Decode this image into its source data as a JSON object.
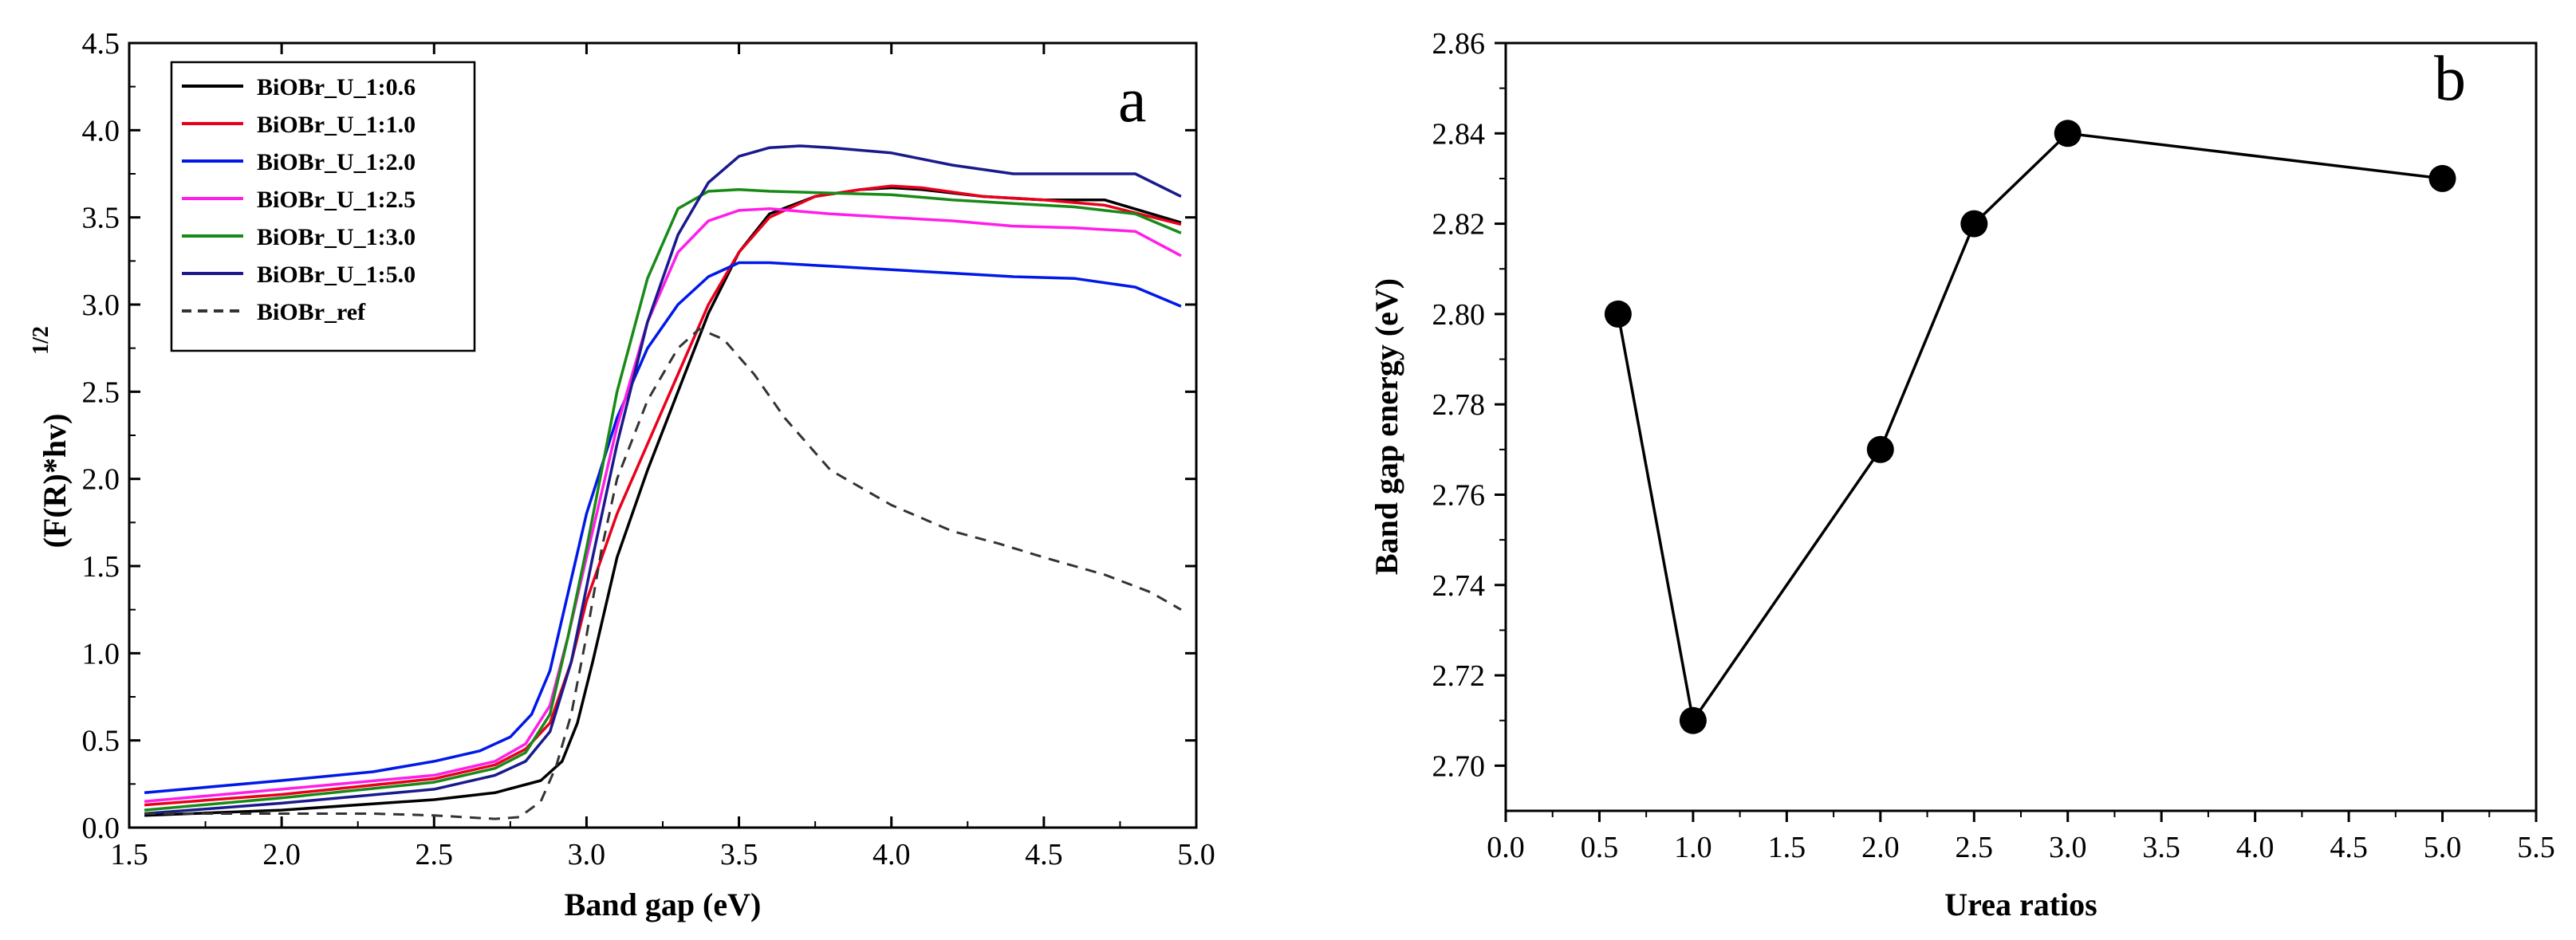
{
  "chart_data": [
    {
      "type": "line",
      "panel_label": "a",
      "title": "",
      "xlabel": "Band gap (eV)",
      "ylabel": "(F(R)*hv)",
      "ylabel_superscript": "1/2",
      "xlim": [
        1.5,
        5.0
      ],
      "ylim": [
        0,
        4.5
      ],
      "xticks": [
        1.5,
        2.0,
        2.5,
        3.0,
        3.5,
        4.0,
        4.5,
        5.0
      ],
      "xtick_labels": [
        "1.5",
        "2.0",
        "2.5",
        "3.0",
        "3.5",
        "4.0",
        "4.5",
        "5.0"
      ],
      "yticks": [
        0,
        0.5,
        1.0,
        1.5,
        2.0,
        2.5,
        3.0,
        3.5,
        4.0,
        4.5
      ],
      "ytick_labels": [
        "0.0",
        "0.5",
        "1.0",
        "1.5",
        "2.0",
        "2.5",
        "3.0",
        "3.5",
        "4.0",
        "4.5"
      ],
      "legend_position": "top-left",
      "series": [
        {
          "name": "BiOBr_U_1:0.6",
          "color": "#000000",
          "dash": false,
          "x": [
            1.55,
            2.0,
            2.5,
            2.7,
            2.85,
            2.92,
            2.97,
            3.02,
            3.1,
            3.2,
            3.3,
            3.4,
            3.5,
            3.6,
            3.75,
            3.9,
            4.0,
            4.1,
            4.3,
            4.5,
            4.7,
            4.95
          ],
          "y": [
            0.07,
            0.1,
            0.16,
            0.2,
            0.27,
            0.38,
            0.6,
            0.95,
            1.55,
            2.05,
            2.5,
            2.95,
            3.3,
            3.52,
            3.62,
            3.66,
            3.67,
            3.66,
            3.62,
            3.6,
            3.6,
            3.47
          ]
        },
        {
          "name": "BiOBr_U_1:1.0",
          "color": "#e8001c",
          "dash": false,
          "x": [
            1.55,
            2.0,
            2.5,
            2.7,
            2.8,
            2.88,
            2.95,
            3.0,
            3.1,
            3.2,
            3.3,
            3.4,
            3.5,
            3.6,
            3.75,
            3.9,
            4.0,
            4.1,
            4.3,
            4.5,
            4.7,
            4.95
          ],
          "y": [
            0.13,
            0.19,
            0.28,
            0.36,
            0.45,
            0.6,
            0.95,
            1.3,
            1.8,
            2.2,
            2.6,
            3.0,
            3.3,
            3.5,
            3.62,
            3.66,
            3.68,
            3.67,
            3.62,
            3.6,
            3.57,
            3.46
          ]
        },
        {
          "name": "BiOBr_U_1:2.0",
          "color": "#0018e8",
          "dash": false,
          "x": [
            1.55,
            2.0,
            2.3,
            2.5,
            2.65,
            2.75,
            2.82,
            2.88,
            2.94,
            3.0,
            3.1,
            3.2,
            3.3,
            3.4,
            3.5,
            3.6,
            3.8,
            4.0,
            4.2,
            4.4,
            4.6,
            4.8,
            4.95
          ],
          "y": [
            0.2,
            0.27,
            0.32,
            0.38,
            0.44,
            0.52,
            0.65,
            0.9,
            1.35,
            1.8,
            2.35,
            2.75,
            3.0,
            3.16,
            3.24,
            3.24,
            3.22,
            3.2,
            3.18,
            3.16,
            3.15,
            3.1,
            2.99
          ]
        },
        {
          "name": "BiOBr_U_1:2.5",
          "color": "#ff1ee8",
          "dash": false,
          "x": [
            1.55,
            2.0,
            2.5,
            2.7,
            2.8,
            2.88,
            2.94,
            3.0,
            3.1,
            3.2,
            3.3,
            3.4,
            3.5,
            3.6,
            3.8,
            4.0,
            4.2,
            4.4,
            4.6,
            4.8,
            4.95
          ],
          "y": [
            0.15,
            0.22,
            0.3,
            0.38,
            0.48,
            0.7,
            1.1,
            1.55,
            2.3,
            2.9,
            3.3,
            3.48,
            3.54,
            3.55,
            3.52,
            3.5,
            3.48,
            3.45,
            3.44,
            3.42,
            3.28
          ]
        },
        {
          "name": "BiOBr_U_1:3.0",
          "color": "#178a17",
          "dash": false,
          "x": [
            1.55,
            2.0,
            2.5,
            2.7,
            2.8,
            2.88,
            2.94,
            3.0,
            3.1,
            3.2,
            3.3,
            3.4,
            3.5,
            3.6,
            3.8,
            4.0,
            4.2,
            4.4,
            4.6,
            4.8,
            4.95
          ],
          "y": [
            0.1,
            0.17,
            0.26,
            0.34,
            0.43,
            0.65,
            1.1,
            1.6,
            2.5,
            3.15,
            3.55,
            3.65,
            3.66,
            3.65,
            3.64,
            3.63,
            3.6,
            3.58,
            3.56,
            3.52,
            3.41
          ]
        },
        {
          "name": "BiOBr_U_1:5.0",
          "color": "#1a1a8c",
          "dash": false,
          "x": [
            1.55,
            2.0,
            2.5,
            2.7,
            2.8,
            2.88,
            2.95,
            3.02,
            3.1,
            3.2,
            3.3,
            3.4,
            3.5,
            3.6,
            3.7,
            3.8,
            4.0,
            4.2,
            4.4,
            4.6,
            4.8,
            4.95
          ],
          "y": [
            0.08,
            0.14,
            0.22,
            0.3,
            0.38,
            0.55,
            0.95,
            1.55,
            2.2,
            2.9,
            3.4,
            3.7,
            3.85,
            3.9,
            3.91,
            3.9,
            3.87,
            3.8,
            3.75,
            3.75,
            3.75,
            3.62
          ]
        },
        {
          "name": "BiOBr_ref",
          "color": "#333333",
          "dash": true,
          "x": [
            1.55,
            2.0,
            2.3,
            2.5,
            2.7,
            2.78,
            2.85,
            2.9,
            2.95,
            3.0,
            3.05,
            3.1,
            3.2,
            3.3,
            3.37,
            3.45,
            3.55,
            3.65,
            3.8,
            4.0,
            4.2,
            4.35,
            4.5,
            4.7,
            4.85,
            4.95
          ],
          "y": [
            0.08,
            0.08,
            0.08,
            0.07,
            0.05,
            0.06,
            0.15,
            0.35,
            0.65,
            1.1,
            1.6,
            2.0,
            2.45,
            2.75,
            2.86,
            2.8,
            2.6,
            2.35,
            2.05,
            1.85,
            1.7,
            1.63,
            1.55,
            1.45,
            1.35,
            1.25
          ]
        }
      ]
    },
    {
      "type": "line",
      "panel_label": "b",
      "title": "",
      "xlabel": "Urea ratios",
      "ylabel": "Band gap energy (eV)",
      "xlim": [
        0,
        5.5
      ],
      "ylim": [
        2.69,
        2.86
      ],
      "xticks": [
        0,
        0.5,
        1.0,
        1.5,
        2.0,
        2.5,
        3.0,
        3.5,
        4.0,
        4.5,
        5.0,
        5.5
      ],
      "xtick_labels": [
        "0.0",
        "0.5",
        "1.0",
        "1.5",
        "2.0",
        "2.5",
        "3.0",
        "3.5",
        "4.0",
        "4.5",
        "5.0",
        "5.5"
      ],
      "yticks": [
        2.7,
        2.72,
        2.74,
        2.76,
        2.78,
        2.8,
        2.82,
        2.84,
        2.86
      ],
      "ytick_labels": [
        "2.70",
        "2.72",
        "2.74",
        "2.76",
        "2.78",
        "2.80",
        "2.82",
        "2.84",
        "2.86"
      ],
      "series": [
        {
          "name": "Band gap",
          "color": "#000000",
          "marker": "circle",
          "x": [
            0.6,
            1.0,
            2.0,
            2.5,
            3.0,
            5.0
          ],
          "y": [
            2.8,
            2.71,
            2.77,
            2.82,
            2.84,
            2.83
          ]
        }
      ]
    }
  ]
}
